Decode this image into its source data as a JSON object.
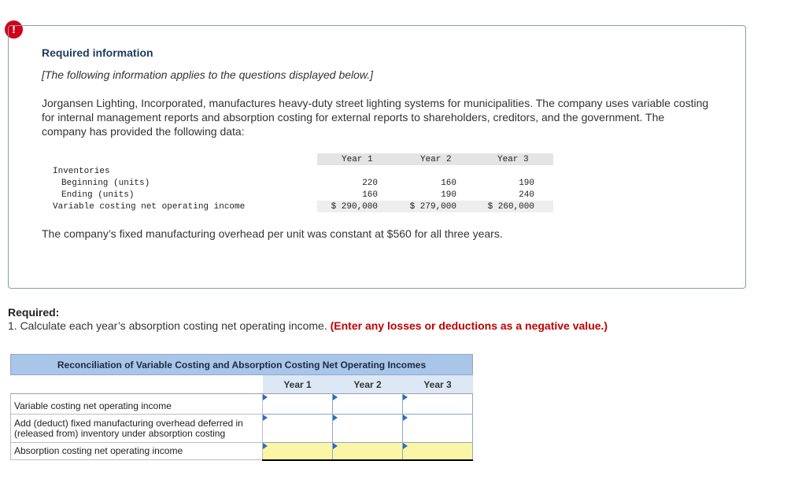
{
  "alert_symbol": "!",
  "info": {
    "title": "Required information",
    "subtitle": "[The following information applies to the questions displayed below.]",
    "paragraph": "Jorgansen Lighting, Incorporated, manufactures heavy-duty street lighting systems for municipalities. The company uses variable costing for internal management reports and absorption costing for external reports to shareholders, creditors, and the government. The company has provided the following data:",
    "footnote": "The company’s fixed manufacturing overhead per unit was constant at $560 for all three years."
  },
  "data_table": {
    "years": [
      "Year 1",
      "Year 2",
      "Year 3"
    ],
    "section_label": "Inventories",
    "rows": [
      {
        "label": "Beginning (units)",
        "values": [
          "220",
          "160",
          "190"
        ]
      },
      {
        "label": "Ending (units)",
        "values": [
          "160",
          "190",
          "240"
        ]
      },
      {
        "label": "Variable costing net operating income",
        "values": [
          "$ 290,000",
          "$ 279,000",
          "$ 260,000"
        ]
      }
    ]
  },
  "required": {
    "label": "Required:",
    "question": "1. Calculate each year’s absorption costing net operating income.",
    "hint": "(Enter any losses or deductions as a negative value.)"
  },
  "recon": {
    "title": "Reconciliation of Variable Costing and Absorption Costing Net Operating Incomes",
    "columns": [
      "Year 1",
      "Year 2",
      "Year 3"
    ],
    "rows": [
      {
        "label": "Variable costing net operating income",
        "values": [
          "",
          "",
          ""
        ]
      },
      {
        "label": "Add (deduct) fixed manufacturing overhead deferred in (released from) inventory under absorption costing",
        "values": [
          "",
          "",
          ""
        ]
      },
      {
        "label": "Absorption costing net operating income",
        "values": [
          "",
          "",
          ""
        ]
      }
    ]
  }
}
